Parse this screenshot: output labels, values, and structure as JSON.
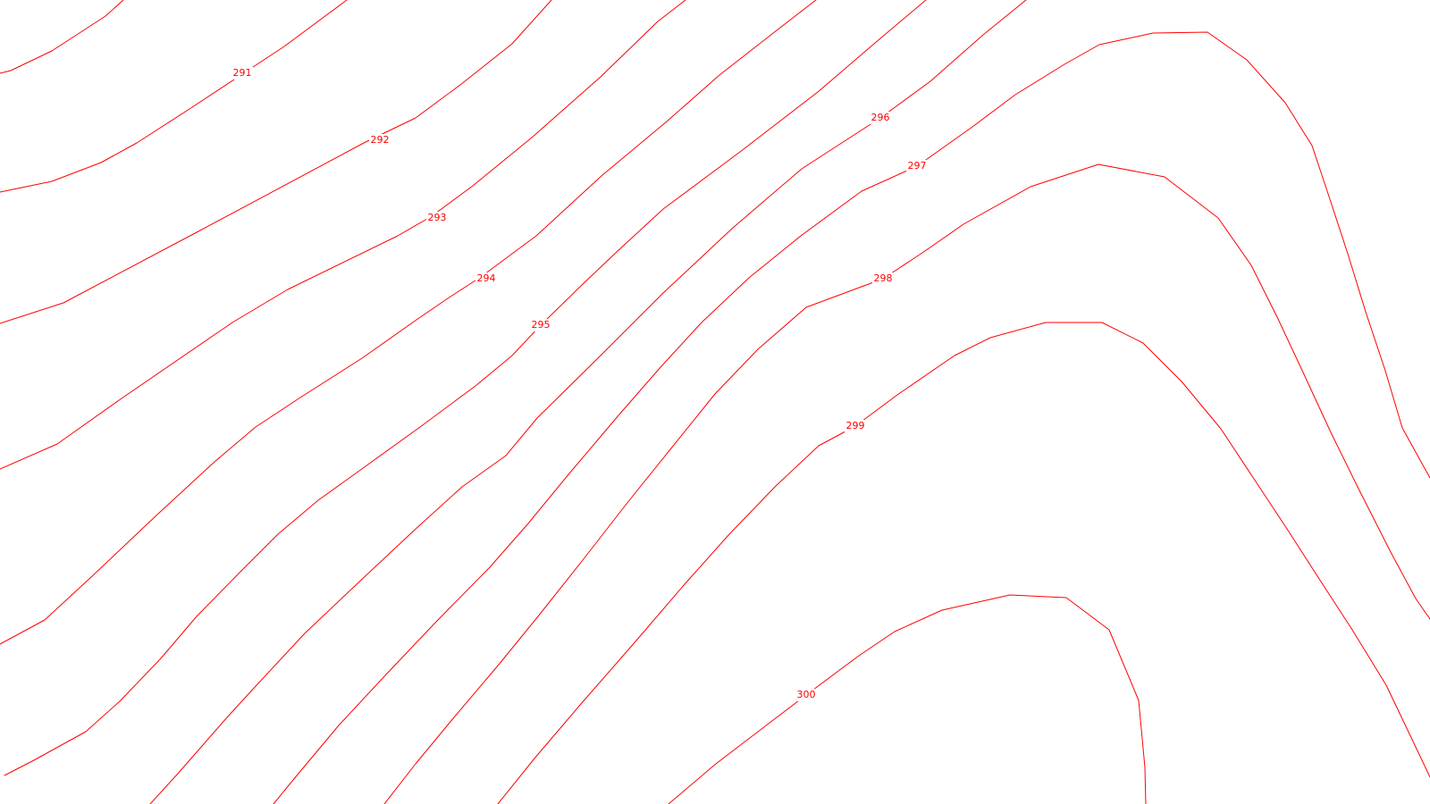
{
  "map": {
    "line_color": "#ff0000",
    "background": "#ffffff",
    "contours": [
      {
        "label": "291"
      },
      {
        "label": "292"
      },
      {
        "label": "293"
      },
      {
        "label": "294"
      },
      {
        "label": "295"
      },
      {
        "label": "296"
      },
      {
        "label": "297"
      },
      {
        "label": "298"
      },
      {
        "label": "299"
      },
      {
        "label": "300"
      }
    ]
  }
}
